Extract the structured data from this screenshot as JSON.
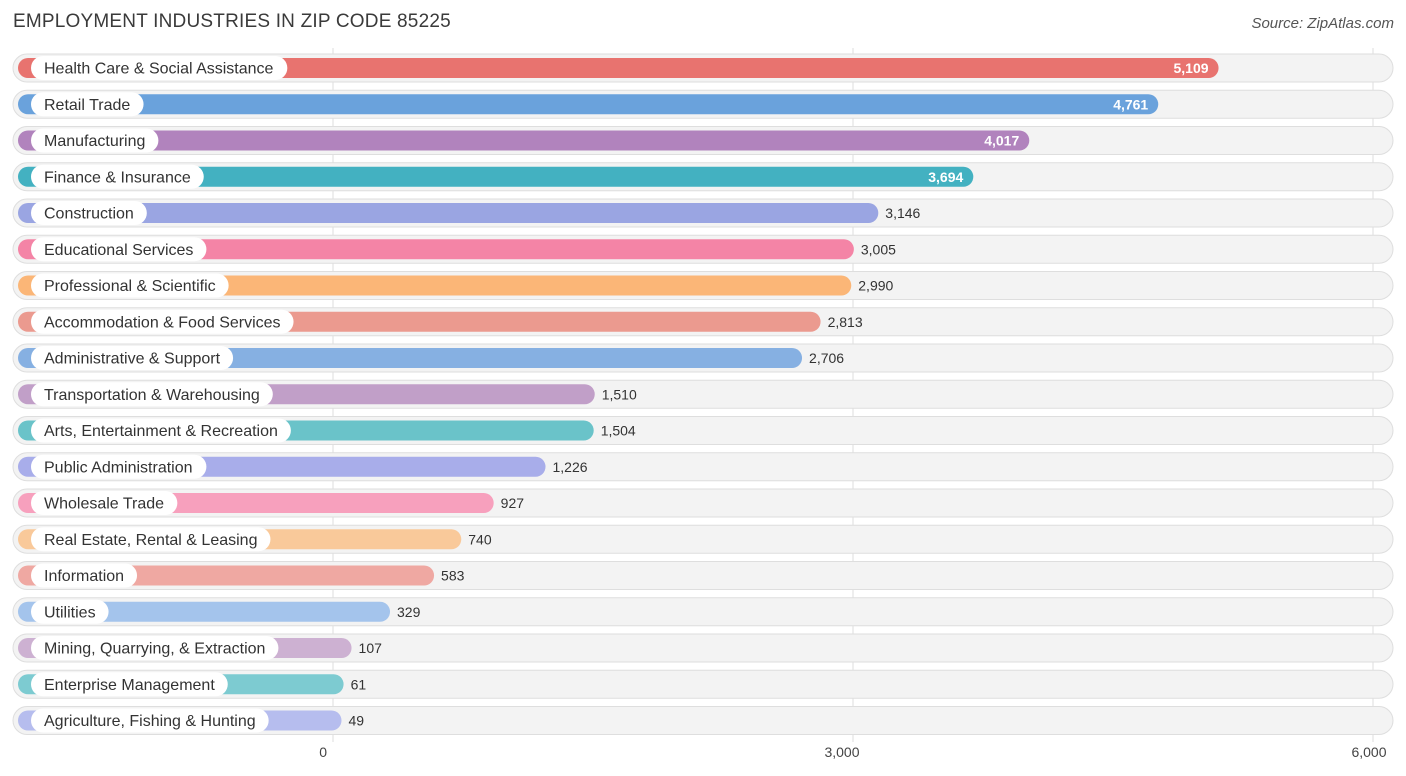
{
  "header": {
    "title": "EMPLOYMENT INDUSTRIES IN ZIP CODE 85225",
    "source": "Source: ZipAtlas.com"
  },
  "chart_data": {
    "type": "bar",
    "orientation": "horizontal",
    "title": "EMPLOYMENT INDUSTRIES IN ZIP CODE 85225",
    "xlabel": "",
    "ylabel": "",
    "xlim": [
      0,
      6000
    ],
    "ticks": [
      0,
      3000,
      6000
    ],
    "tick_labels": [
      "0",
      "3,000",
      "6,000"
    ],
    "categories": [
      "Health Care & Social Assistance",
      "Retail Trade",
      "Manufacturing",
      "Finance & Insurance",
      "Construction",
      "Educational Services",
      "Professional & Scientific",
      "Accommodation & Food Services",
      "Administrative & Support",
      "Transportation & Warehousing",
      "Arts, Entertainment & Recreation",
      "Public Administration",
      "Wholesale Trade",
      "Real Estate, Rental & Leasing",
      "Information",
      "Utilities",
      "Mining, Quarrying, & Extraction",
      "Enterprise Management",
      "Agriculture, Fishing & Hunting"
    ],
    "values": [
      5109,
      4761,
      4017,
      3694,
      3146,
      3005,
      2990,
      2813,
      2706,
      1510,
      1504,
      1226,
      927,
      740,
      583,
      329,
      107,
      61,
      49
    ],
    "value_labels": [
      "5,109",
      "4,761",
      "4,017",
      "3,694",
      "3,146",
      "3,005",
      "2,990",
      "2,813",
      "2,706",
      "1,510",
      "1,504",
      "1,226",
      "927",
      "740",
      "583",
      "329",
      "107",
      "61",
      "49"
    ],
    "colors": [
      "#e8736f",
      "#6aa2dc",
      "#b183bd",
      "#43b1c1",
      "#9aa5e2",
      "#f484a6",
      "#fbb677",
      "#eb9a8f",
      "#86b0e2",
      "#c19fc8",
      "#6ac3c9",
      "#a8adea",
      "#f7a0bd",
      "#f9c99a",
      "#efa8a2",
      "#a4c4ec",
      "#cdb1d2",
      "#7dcbd1",
      "#b6bdee"
    ],
    "label_inside": [
      true,
      true,
      true,
      true,
      false,
      false,
      false,
      false,
      false,
      false,
      false,
      false,
      false,
      false,
      false,
      false,
      false,
      false,
      false
    ]
  }
}
